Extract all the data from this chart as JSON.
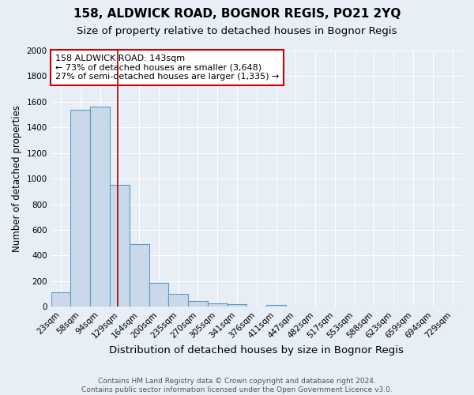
{
  "title": "158, ALDWICK ROAD, BOGNOR REGIS, PO21 2YQ",
  "subtitle": "Size of property relative to detached houses in Bognor Regis",
  "xlabel": "Distribution of detached houses by size in Bognor Regis",
  "ylabel": "Number of detached properties",
  "bin_labels": [
    "23sqm",
    "58sqm",
    "94sqm",
    "129sqm",
    "164sqm",
    "200sqm",
    "235sqm",
    "270sqm",
    "305sqm",
    "341sqm",
    "376sqm",
    "411sqm",
    "447sqm",
    "482sqm",
    "517sqm",
    "553sqm",
    "588sqm",
    "623sqm",
    "659sqm",
    "694sqm",
    "729sqm"
  ],
  "bar_values": [
    110,
    1540,
    1560,
    950,
    490,
    185,
    100,
    45,
    25,
    20,
    0,
    15,
    0,
    0,
    0,
    0,
    0,
    0,
    0,
    0,
    0
  ],
  "bar_color": "#c9d9ea",
  "bar_edge_color": "#5a9bc2",
  "background_color": "#e8eef5",
  "grid_color": "#ffffff",
  "vline_color": "#aa0000",
  "annotation_text": "158 ALDWICK ROAD: 143sqm\n← 73% of detached houses are smaller (3,648)\n27% of semi-detached houses are larger (1,335) →",
  "annotation_box_facecolor": "#ffffff",
  "annotation_box_edgecolor": "#cc0000",
  "ylim": [
    0,
    2000
  ],
  "yticks": [
    0,
    200,
    400,
    600,
    800,
    1000,
    1200,
    1400,
    1600,
    1800,
    2000
  ],
  "footnote": "Contains HM Land Registry data © Crown copyright and database right 2024.\nContains public sector information licensed under the Open Government Licence v3.0.",
  "title_fontsize": 11,
  "subtitle_fontsize": 9.5,
  "xlabel_fontsize": 9.5,
  "ylabel_fontsize": 8.5,
  "tick_fontsize": 7.5,
  "annotation_fontsize": 8,
  "footnote_fontsize": 6.5
}
